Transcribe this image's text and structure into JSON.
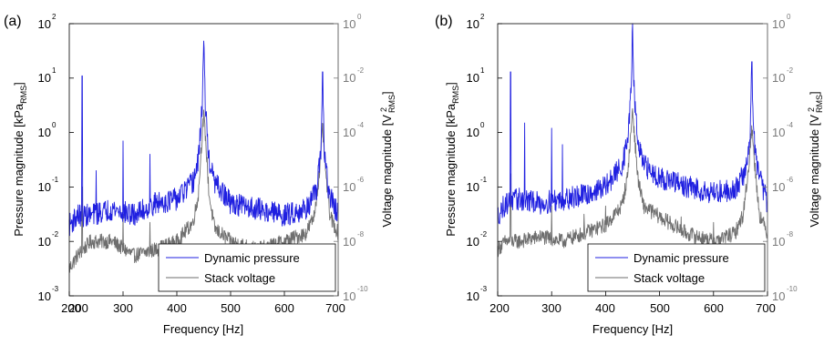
{
  "figure": {
    "panels": [
      {
        "id": "a",
        "panel_label": "(a)",
        "xlabel": "Frequency [Hz]",
        "ylabel_left_main": "Pressure magnitude [kPa",
        "ylabel_left_sub": "RMS",
        "ylabel_left_end": "]",
        "ylabel_right_main": "Voltage magnitude [V",
        "ylabel_right_sup": "2",
        "ylabel_right_sub": "RMS",
        "ylabel_right_end": "]",
        "x_ticks": [
          "200",
          "300",
          "400",
          "500",
          "600",
          "700"
        ],
        "x_tick_extra": "200",
        "left_ticks": [
          {
            "base": "10",
            "exp": "2"
          },
          {
            "base": "10",
            "exp": "1"
          },
          {
            "base": "10",
            "exp": "0"
          },
          {
            "base": "10",
            "exp": "-1"
          },
          {
            "base": "10",
            "exp": "-2"
          },
          {
            "base": "10",
            "exp": "-3"
          }
        ],
        "right_ticks": [
          {
            "base": "10",
            "exp": "0"
          },
          {
            "base": "10",
            "exp": "-2"
          },
          {
            "base": "10",
            "exp": "-4"
          },
          {
            "base": "10",
            "exp": "-6"
          },
          {
            "base": "10",
            "exp": "-8"
          },
          {
            "base": "10",
            "exp": "-10"
          }
        ],
        "legend": [
          "Dynamic pressure",
          "Stack voltage"
        ]
      },
      {
        "id": "b",
        "panel_label": "(b)",
        "xlabel": "Frequency [Hz]",
        "ylabel_left_main": "Pressure magnitude [kPa",
        "ylabel_left_sub": "RMS",
        "ylabel_left_end": "]",
        "ylabel_right_main": "Voltage magnitude [V",
        "ylabel_right_sup": "2",
        "ylabel_right_sub": "RMS",
        "ylabel_right_end": "]",
        "x_ticks": [
          "200",
          "300",
          "400",
          "500",
          "600",
          "700"
        ],
        "x_tick_extra": "",
        "left_ticks": [
          {
            "base": "10",
            "exp": "2"
          },
          {
            "base": "10",
            "exp": "1"
          },
          {
            "base": "10",
            "exp": "0"
          },
          {
            "base": "10",
            "exp": "-1"
          },
          {
            "base": "10",
            "exp": "-2"
          },
          {
            "base": "10",
            "exp": "-3"
          }
        ],
        "right_ticks": [
          {
            "base": "10",
            "exp": "0"
          },
          {
            "base": "10",
            "exp": "-2"
          },
          {
            "base": "10",
            "exp": "-4"
          },
          {
            "base": "10",
            "exp": "-6"
          },
          {
            "base": "10",
            "exp": "-8"
          },
          {
            "base": "10",
            "exp": "-10"
          }
        ],
        "legend": [
          "Dynamic pressure",
          "Stack voltage"
        ]
      }
    ]
  },
  "colors": {
    "pressure": "#1f1fe0",
    "voltage": "#6e6e6e",
    "right_axis": "#7a7a7a",
    "axis": "#000000"
  },
  "chart_data": [
    {
      "type": "line",
      "panel": "(a)",
      "xlabel": "Frequency [Hz]",
      "ylabel_left": "Pressure magnitude [kPa_RMS]",
      "ylabel_right": "Voltage magnitude [V^2_RMS]",
      "xlim": [
        200,
        700
      ],
      "ylim_left": [
        0.001,
        100
      ],
      "ylim_right": [
        1e-10,
        1
      ],
      "yscale": "log",
      "grid": false,
      "legend_position": "bottom-right",
      "series": [
        {
          "name": "Dynamic pressure",
          "axis": "left",
          "baseline": [
            [
              200,
              0.02
            ],
            [
              215,
              0.03
            ],
            [
              240,
              0.03
            ],
            [
              280,
              0.04
            ],
            [
              320,
              0.03
            ],
            [
              360,
              0.05
            ],
            [
              400,
              0.06
            ],
            [
              430,
              0.12
            ],
            [
              440,
              0.3
            ],
            [
              447,
              3
            ],
            [
              450,
              48
            ],
            [
              453,
              3
            ],
            [
              460,
              0.3
            ],
            [
              470,
              0.12
            ],
            [
              500,
              0.05
            ],
            [
              550,
              0.04
            ],
            [
              600,
              0.03
            ],
            [
              640,
              0.04
            ],
            [
              660,
              0.08
            ],
            [
              668,
              0.5
            ],
            [
              671,
              13
            ],
            [
              674,
              0.5
            ],
            [
              682,
              0.08
            ],
            [
              700,
              0.03
            ]
          ],
          "spikes": [
            [
              224,
              11
            ],
            [
              250,
              0.2
            ],
            [
              300,
              0.7
            ],
            [
              350,
              0.4
            ],
            [
              450,
              48
            ],
            [
              671,
              13
            ]
          ]
        },
        {
          "name": "Stack voltage",
          "axis": "right",
          "baseline": [
            [
              200,
              1e-09
            ],
            [
              215,
              3e-09
            ],
            [
              240,
              1e-08
            ],
            [
              280,
              1e-08
            ],
            [
              320,
              3e-09
            ],
            [
              360,
              5e-09
            ],
            [
              400,
              1e-08
            ],
            [
              430,
              5e-08
            ],
            [
              440,
              5e-07
            ],
            [
              447,
              8e-05
            ],
            [
              450,
              0.0004
            ],
            [
              453,
              8e-05
            ],
            [
              460,
              5e-07
            ],
            [
              470,
              3e-08
            ],
            [
              500,
              1e-08
            ],
            [
              550,
              5e-09
            ],
            [
              600,
              1e-08
            ],
            [
              640,
              2e-08
            ],
            [
              655,
              8e-08
            ],
            [
              665,
              3e-06
            ],
            [
              671,
              0.00015
            ],
            [
              677,
              3e-06
            ],
            [
              685,
              8e-08
            ],
            [
              700,
              2e-08
            ]
          ],
          "spikes": [
            [
              224,
              1e-06
            ],
            [
              300,
              1e-07
            ],
            [
              350,
              5e-08
            ]
          ]
        }
      ]
    },
    {
      "type": "line",
      "panel": "(b)",
      "xlabel": "Frequency [Hz]",
      "ylabel_left": "Pressure magnitude [kPa_RMS]",
      "ylabel_right": "Voltage magnitude [V^2_RMS]",
      "xlim": [
        200,
        700
      ],
      "ylim_left": [
        0.001,
        100
      ],
      "ylim_right": [
        1e-10,
        1
      ],
      "yscale": "log",
      "grid": false,
      "legend_position": "bottom-right",
      "series": [
        {
          "name": "Dynamic pressure",
          "axis": "left",
          "baseline": [
            [
              200,
              0.03
            ],
            [
              215,
              0.05
            ],
            [
              240,
              0.06
            ],
            [
              280,
              0.05
            ],
            [
              320,
              0.06
            ],
            [
              360,
              0.07
            ],
            [
              400,
              0.1
            ],
            [
              430,
              0.25
            ],
            [
              440,
              0.6
            ],
            [
              447,
              5
            ],
            [
              450,
              85
            ],
            [
              453,
              5
            ],
            [
              460,
              0.6
            ],
            [
              470,
              0.25
            ],
            [
              500,
              0.15
            ],
            [
              550,
              0.1
            ],
            [
              600,
              0.08
            ],
            [
              640,
              0.09
            ],
            [
              660,
              0.2
            ],
            [
              668,
              1
            ],
            [
              671,
              20
            ],
            [
              674,
              1
            ],
            [
              682,
              0.2
            ],
            [
              700,
              0.05
            ]
          ],
          "spikes": [
            [
              224,
              13
            ],
            [
              250,
              1.5
            ],
            [
              300,
              1.2
            ],
            [
              320,
              0.6
            ],
            [
              450,
              85
            ],
            [
              671,
              20
            ]
          ]
        },
        {
          "name": "Stack voltage",
          "axis": "right",
          "baseline": [
            [
              200,
              5e-09
            ],
            [
              215,
              1e-08
            ],
            [
              240,
              1e-08
            ],
            [
              280,
              1.5e-08
            ],
            [
              320,
              1e-08
            ],
            [
              360,
              2e-08
            ],
            [
              400,
              4e-08
            ],
            [
              430,
              2e-07
            ],
            [
              440,
              2e-06
            ],
            [
              447,
              0.0001
            ],
            [
              450,
              0.0008
            ],
            [
              453,
              0.0001
            ],
            [
              460,
              2e-06
            ],
            [
              470,
              2e-07
            ],
            [
              500,
              8e-08
            ],
            [
              550,
              2e-08
            ],
            [
              600,
              1e-08
            ],
            [
              640,
              2e-08
            ],
            [
              655,
              1e-07
            ],
            [
              665,
              5e-06
            ],
            [
              671,
              0.00015
            ],
            [
              677,
              5e-06
            ],
            [
              685,
              1e-07
            ],
            [
              700,
              2e-08
            ]
          ],
          "spikes": [
            [
              224,
              3e-06
            ],
            [
              300,
              2e-07
            ],
            [
              360,
              1e-07
            ],
            [
              400,
              2e-07
            ],
            [
              500,
              1e-07
            ],
            [
              540,
              8e-08
            ],
            [
              600,
              5e-08
            ]
          ]
        }
      ]
    }
  ]
}
